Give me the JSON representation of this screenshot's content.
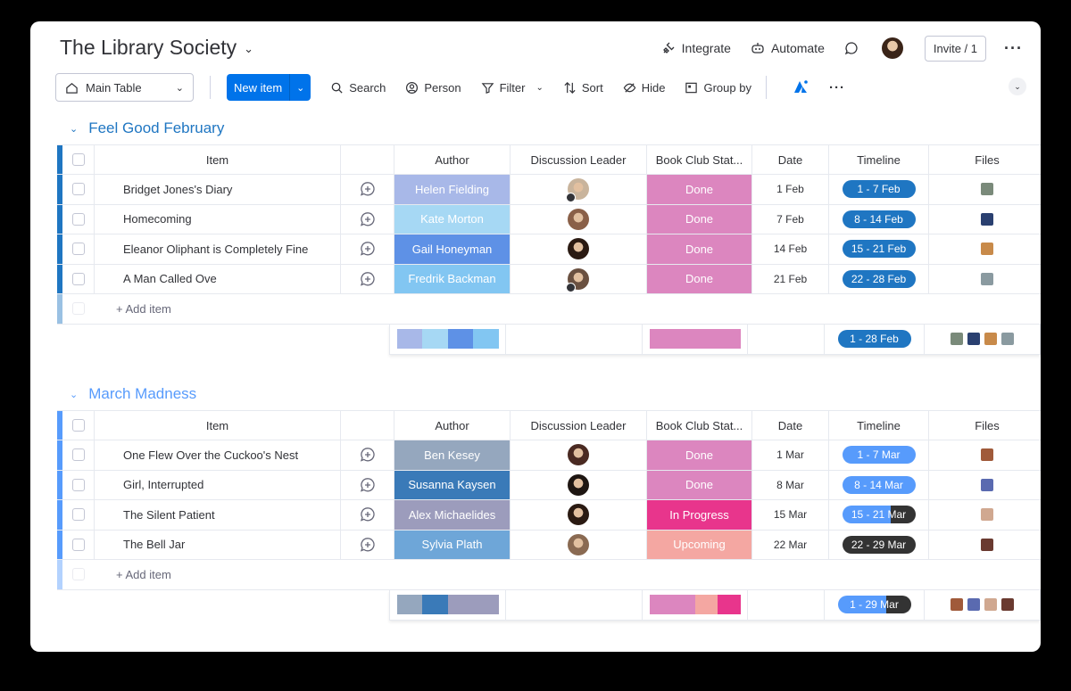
{
  "board": {
    "title": "The Library Society"
  },
  "top_actions": {
    "integrate": "Integrate",
    "automate": "Automate",
    "invite": "Invite / 1"
  },
  "toolbar": {
    "view": "Main Table",
    "new_item": "New item",
    "search": "Search",
    "person": "Person",
    "filter": "Filter",
    "sort": "Sort",
    "hide": "Hide",
    "group_by": "Group by"
  },
  "columns": {
    "item": "Item",
    "author": "Author",
    "lead": "Discussion Leader",
    "status": "Book Club Stat...",
    "date": "Date",
    "timeline": "Timeline",
    "files": "Files"
  },
  "colors": {
    "group1": "#1f76c2",
    "group2": "#579bfc",
    "done": "#e484bd",
    "in_progress": "#e8358c",
    "upcoming": "#f4a7a2"
  },
  "groups": [
    {
      "title": "Feel Good February",
      "color": "#1f76c2",
      "add_item": "+ Add item",
      "rows": [
        {
          "item": "Bridget Jones's Diary",
          "author": "Helen Fielding",
          "author_color": "#a8b8e8",
          "status": "Done",
          "status_color": "#dc86bf",
          "date": "1 Feb",
          "timeline": "1 - 7 Feb",
          "tl_color": "#1f76c2",
          "tl_fill": 1,
          "face": "#c9b49c",
          "home": true,
          "file": "#7a8a7a"
        },
        {
          "item": "Homecoming",
          "author": "Kate Morton",
          "author_color": "#a6d8f4",
          "status": "Done",
          "status_color": "#dc86bf",
          "date": "7 Feb",
          "timeline": "8 - 14 Feb",
          "tl_color": "#1f76c2",
          "tl_fill": 1,
          "face": "#8a6048",
          "home": false,
          "file": "#2a4070"
        },
        {
          "item": "Eleanor Oliphant is Completely Fine",
          "author": "Gail Honeyman",
          "author_color": "#5e91e6",
          "status": "Done",
          "status_color": "#dc86bf",
          "date": "14 Feb",
          "timeline": "15 - 21 Feb",
          "tl_color": "#1f76c2",
          "tl_fill": 1,
          "face": "#2a1a12",
          "home": false,
          "file": "#c88a4a"
        },
        {
          "item": "A Man Called Ove",
          "author": "Fredrik Backman",
          "author_color": "#82c6f2",
          "status": "Done",
          "status_color": "#dc86bf",
          "date": "21 Feb",
          "timeline": "22 - 28 Feb",
          "tl_color": "#1f76c2",
          "tl_fill": 1,
          "face": "#6a5040",
          "home": true,
          "file": "#8a9aa0"
        }
      ],
      "summary": {
        "author_bar": [
          "#a8b8e8",
          "#a6d8f4",
          "#5e91e6",
          "#82c6f2"
        ],
        "status_bar": [
          "#dc86bf"
        ],
        "timeline": "1 - 28 Feb",
        "tl_color": "#1f76c2",
        "tl_fill": 1,
        "files": [
          "#7a8a7a",
          "#2a4070",
          "#c88a4a",
          "#8a9aa0"
        ]
      }
    },
    {
      "title": "March Madness",
      "color": "#579bfc",
      "add_item": "+ Add item",
      "rows": [
        {
          "item": "One Flew Over the Cuckoo's Nest",
          "author": "Ben Kesey",
          "author_color": "#95a7be",
          "status": "Done",
          "status_color": "#dc86bf",
          "date": "1 Mar",
          "timeline": "1 - 7 Mar",
          "tl_color": "#579bfc",
          "tl_fill": 1,
          "face": "#4a2a22",
          "home": false,
          "file": "#a05a3a"
        },
        {
          "item": "Girl, Interrupted",
          "author": "Susanna Kaysen",
          "author_color": "#3a7ab8",
          "status": "Done",
          "status_color": "#dc86bf",
          "date": "8 Mar",
          "timeline": "8 - 14 Mar",
          "tl_color": "#579bfc",
          "tl_fill": 1,
          "face": "#1e1612",
          "home": false,
          "file": "#5a6ab0"
        },
        {
          "item": "The Silent Patient",
          "author": "Alex Michaelides",
          "author_color": "#9c9cbc",
          "status": "In Progress",
          "status_color": "#e8358c",
          "date": "15 Mar",
          "timeline": "15 - 21 Mar",
          "tl_color": "#579bfc",
          "tl_fill": 0.66,
          "face": "#2a1a12",
          "home": false,
          "file": "#d0a890"
        },
        {
          "item": "The Bell Jar",
          "author": "Sylvia Plath",
          "author_color": "#6ea6d8",
          "status": "Upcoming",
          "status_color": "#f4a7a2",
          "date": "22 Mar",
          "timeline": "22 - 29 Mar",
          "tl_color": "#333333",
          "tl_fill": 0,
          "face": "#8a6a52",
          "home": false,
          "file": "#6a3a30"
        }
      ],
      "summary": {
        "author_bar": [
          "#95a7be",
          "#3a7ab8",
          "#9c9cbc",
          "#9c9cbc"
        ],
        "status_bar": [
          "#dc86bf",
          "#dc86bf",
          "#f4a7a2",
          "#e8358c"
        ],
        "timeline": "1 - 29 Mar",
        "tl_color": "#579bfc",
        "tl_fill": 0.66,
        "files": [
          "#a05a3a",
          "#5a6ab0",
          "#d0a890",
          "#6a3a30"
        ]
      }
    }
  ]
}
